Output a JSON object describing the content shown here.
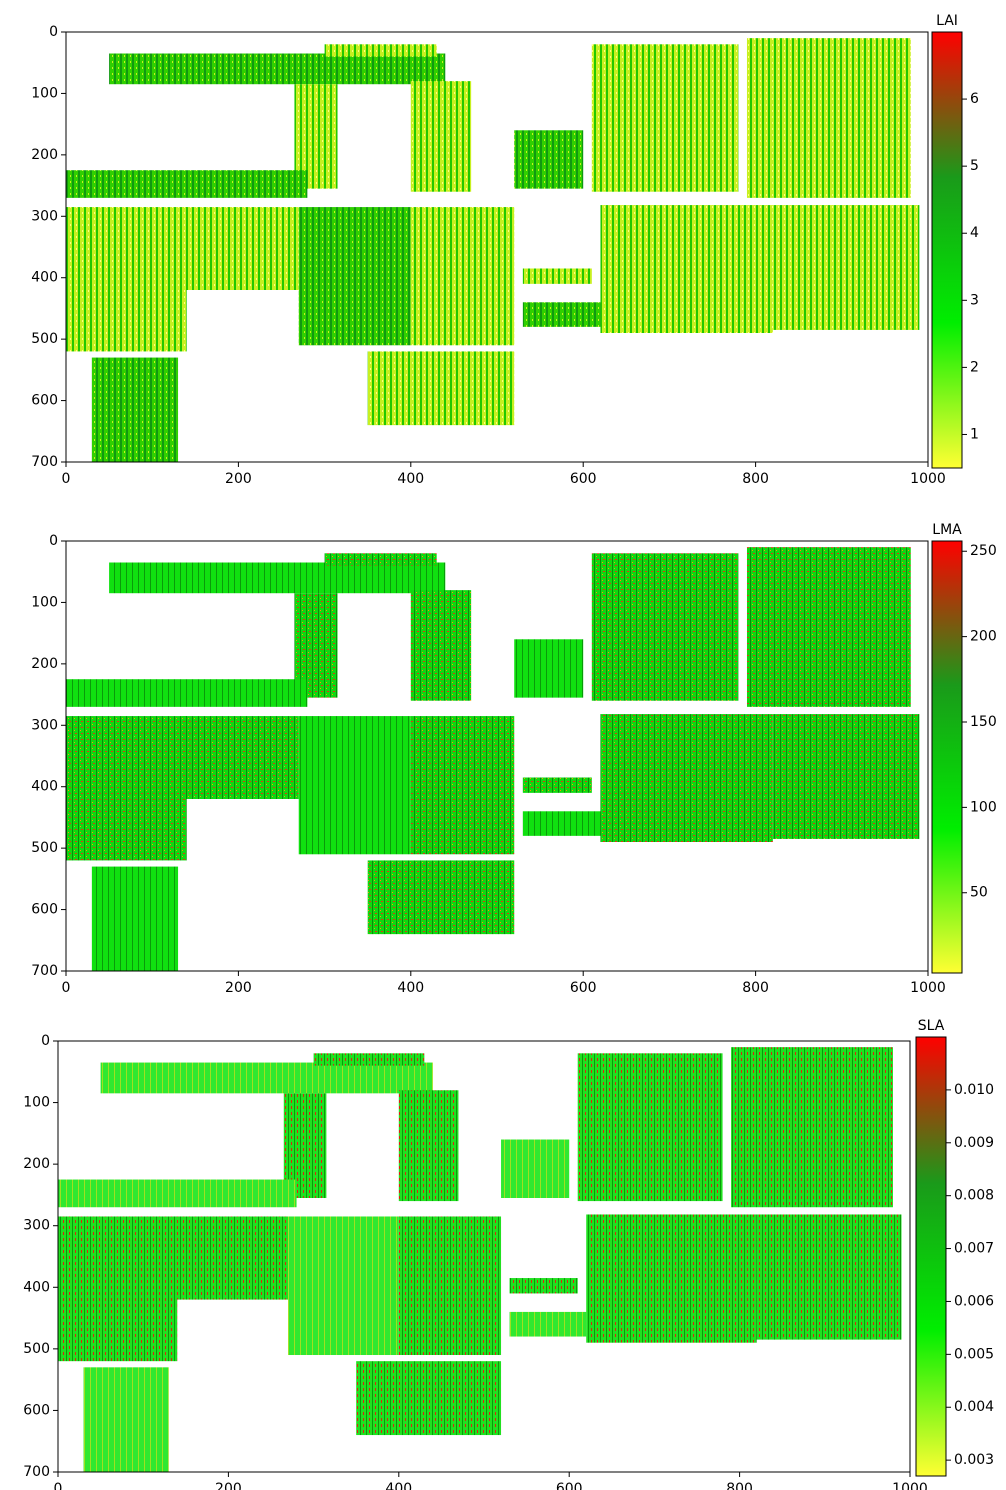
{
  "chart_data": [
    {
      "type": "heatmap",
      "colorbar_label": "LAI",
      "xlim": [
        0,
        1000
      ],
      "xticks": [
        0,
        200,
        400,
        600,
        800,
        1000
      ],
      "ylim": [
        0,
        700
      ],
      "yaxis_inverted": true,
      "yticks": [
        0,
        100,
        200,
        300,
        400,
        500,
        600,
        700
      ],
      "clim": [
        0.5,
        7
      ],
      "cticks": [
        1,
        2,
        3,
        4,
        5,
        6
      ],
      "colormap": [
        "#ffff33",
        "#00ee00",
        "#1a9a1a",
        "#ff0000"
      ]
    },
    {
      "type": "heatmap",
      "colorbar_label": "LMA",
      "xlim": [
        0,
        1000
      ],
      "xticks": [
        0,
        200,
        400,
        600,
        800,
        1000
      ],
      "ylim": [
        0,
        700
      ],
      "yaxis_inverted": true,
      "yticks": [
        0,
        100,
        200,
        300,
        400,
        500,
        600,
        700
      ],
      "clim": [
        3,
        256
      ],
      "cticks": [
        50,
        100,
        150,
        200,
        250
      ],
      "colormap": [
        "#ffff33",
        "#00ee00",
        "#1a9a1a",
        "#ff0000"
      ]
    },
    {
      "type": "heatmap",
      "colorbar_label": "SLA",
      "xlim": [
        0,
        1000
      ],
      "xticks": [
        0,
        200,
        400,
        600,
        800,
        1000
      ],
      "ylim": [
        0,
        700
      ],
      "yaxis_inverted": true,
      "yticks": [
        0,
        100,
        200,
        300,
        400,
        500,
        600,
        700
      ],
      "clim": [
        0.0027,
        0.011
      ],
      "cticks": [
        0.003,
        0.004,
        0.005,
        0.006,
        0.007,
        0.008,
        0.009,
        {
          "value": 0.01,
          "label": "0.010"
        }
      ],
      "colormap": [
        "#ffff33",
        "#00ee00",
        "#1a9a1a",
        "#ff0000"
      ]
    }
  ]
}
